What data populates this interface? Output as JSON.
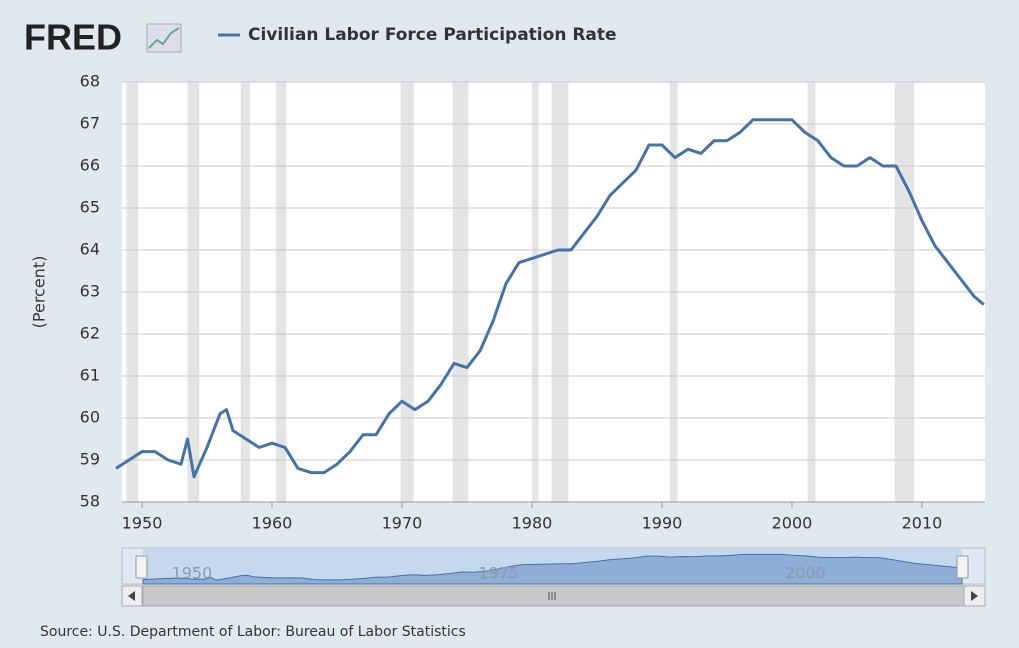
{
  "logo": "FRED",
  "chart_data": {
    "type": "line",
    "y_label": "(Percent)",
    "source": "Source: U.S. Department of Labor: Bureau of Labor Statistics",
    "x": [
      1948,
      1949,
      1950,
      1951,
      1952,
      1953,
      1953.5,
      1954,
      1955,
      1956,
      1956.5,
      1957,
      1958,
      1959,
      1960,
      1961,
      1962,
      1963,
      1964,
      1965,
      1966,
      1967,
      1968,
      1969,
      1970,
      1971,
      1972,
      1973,
      1974,
      1975,
      1976,
      1977,
      1978,
      1979,
      1980,
      1981,
      1982,
      1983,
      1984,
      1985,
      1986,
      1987,
      1988,
      1989,
      1990,
      1991,
      1992,
      1993,
      1994,
      1995,
      1996,
      1997,
      1998,
      1999,
      2000,
      2001,
      2002,
      2003,
      2004,
      2005,
      2006,
      2007,
      2008,
      2009,
      2010,
      2011,
      2012,
      2013,
      2014,
      2014.75
    ],
    "series": [
      {
        "name": "Civilian Labor Force Participation Rate",
        "color": "#4572a7",
        "values": [
          58.8,
          59.0,
          59.2,
          59.2,
          59.0,
          58.9,
          59.5,
          58.6,
          59.3,
          60.1,
          60.2,
          59.7,
          59.5,
          59.3,
          59.4,
          59.3,
          58.8,
          58.7,
          58.7,
          58.9,
          59.2,
          59.6,
          59.6,
          60.1,
          60.4,
          60.2,
          60.4,
          60.8,
          61.3,
          61.2,
          61.6,
          62.3,
          63.2,
          63.7,
          63.8,
          63.9,
          64.0,
          64.0,
          64.4,
          64.8,
          65.3,
          65.6,
          65.9,
          66.5,
          66.5,
          66.2,
          66.4,
          66.3,
          66.6,
          66.6,
          66.8,
          67.1,
          67.1,
          67.1,
          67.1,
          66.8,
          66.6,
          66.2,
          66.0,
          66.0,
          66.2,
          66.0,
          66.0,
          65.4,
          64.7,
          64.1,
          63.7,
          63.3,
          62.9,
          62.7
        ]
      }
    ],
    "recessions": [
      [
        1948.8,
        1949.7
      ],
      [
        1953.5,
        1954.4
      ],
      [
        1957.6,
        1958.3
      ],
      [
        1960.3,
        1961.1
      ],
      [
        1969.9,
        1970.9
      ],
      [
        1973.9,
        1975.1
      ],
      [
        1980.0,
        1980.5
      ],
      [
        1981.5,
        1982.8
      ],
      [
        1990.6,
        1991.2
      ],
      [
        2001.2,
        2001.8
      ],
      [
        2007.9,
        2009.4
      ]
    ],
    "xlim": [
      1948.46,
      2014.85
    ],
    "xticks": [
      1950,
      1960,
      1970,
      1980,
      1990,
      2000,
      2010
    ],
    "ylim": [
      58,
      68
    ],
    "yticks": [
      58,
      59,
      60,
      61,
      62,
      63,
      64,
      65,
      66,
      67,
      68
    ],
    "grid": true,
    "navigator_xticks": [
      1950,
      1975,
      2000
    ]
  }
}
